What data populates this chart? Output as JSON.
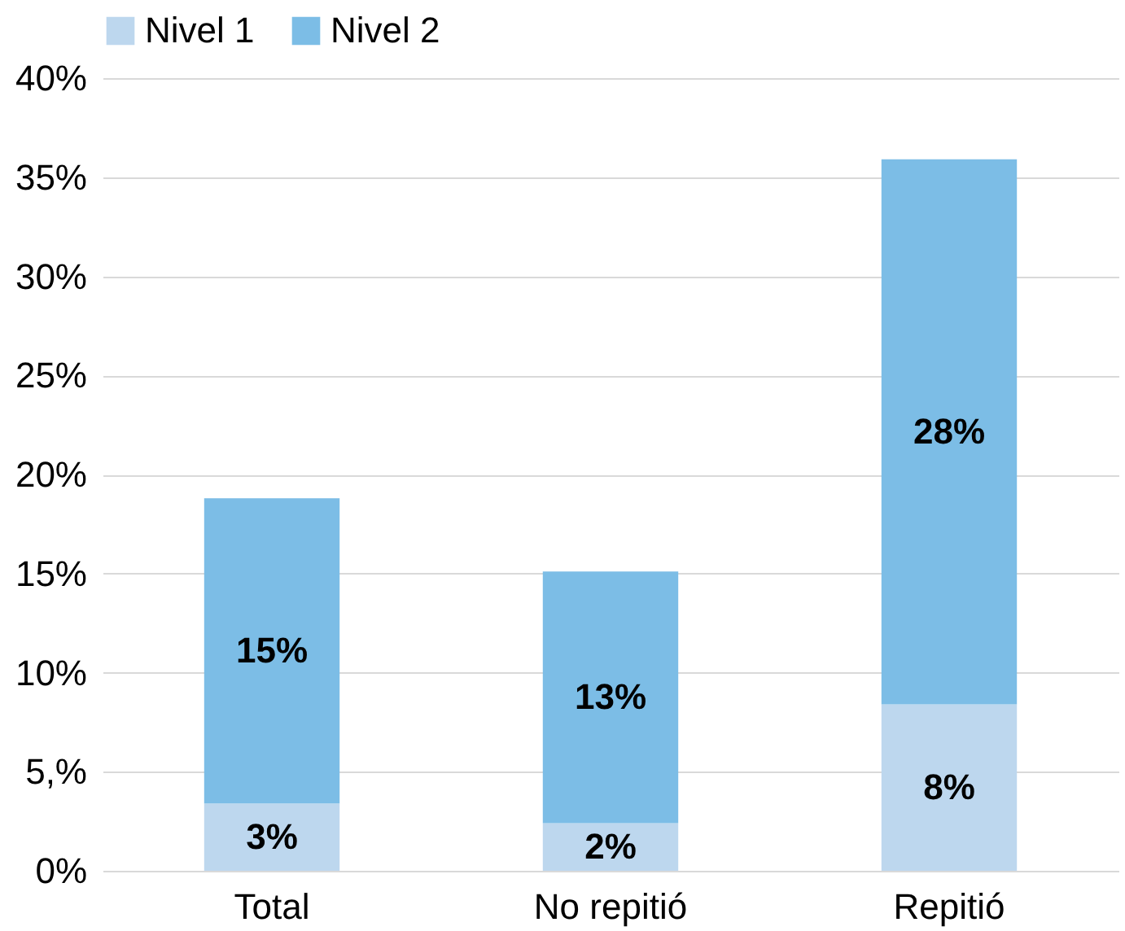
{
  "chart_data": {
    "type": "bar",
    "stacked": true,
    "categories": [
      "Total",
      "No repitió",
      "Repitió"
    ],
    "series": [
      {
        "name": "Nivel 1",
        "color": "#bdd7ee",
        "values": [
          3.4,
          2.4,
          8.4
        ],
        "value_labels": [
          "3%",
          "2%",
          "8%"
        ]
      },
      {
        "name": "Nivel 2",
        "color": "#7cbde6",
        "values": [
          15.4,
          12.7,
          27.5
        ],
        "value_labels": [
          "15%",
          "13%",
          "28%"
        ]
      }
    ],
    "ylim": [
      0,
      40
    ],
    "yticks": [
      {
        "value": 0,
        "label": "0%"
      },
      {
        "value": 5,
        "label": "5,%"
      },
      {
        "value": 10,
        "label": "10%"
      },
      {
        "value": 15,
        "label": "15%"
      },
      {
        "value": 20,
        "label": "20%"
      },
      {
        "value": 25,
        "label": "25%"
      },
      {
        "value": 30,
        "label": "30%"
      },
      {
        "value": 35,
        "label": "35%"
      },
      {
        "value": 40,
        "label": "40%"
      }
    ],
    "grid": "y",
    "legend": "top"
  }
}
